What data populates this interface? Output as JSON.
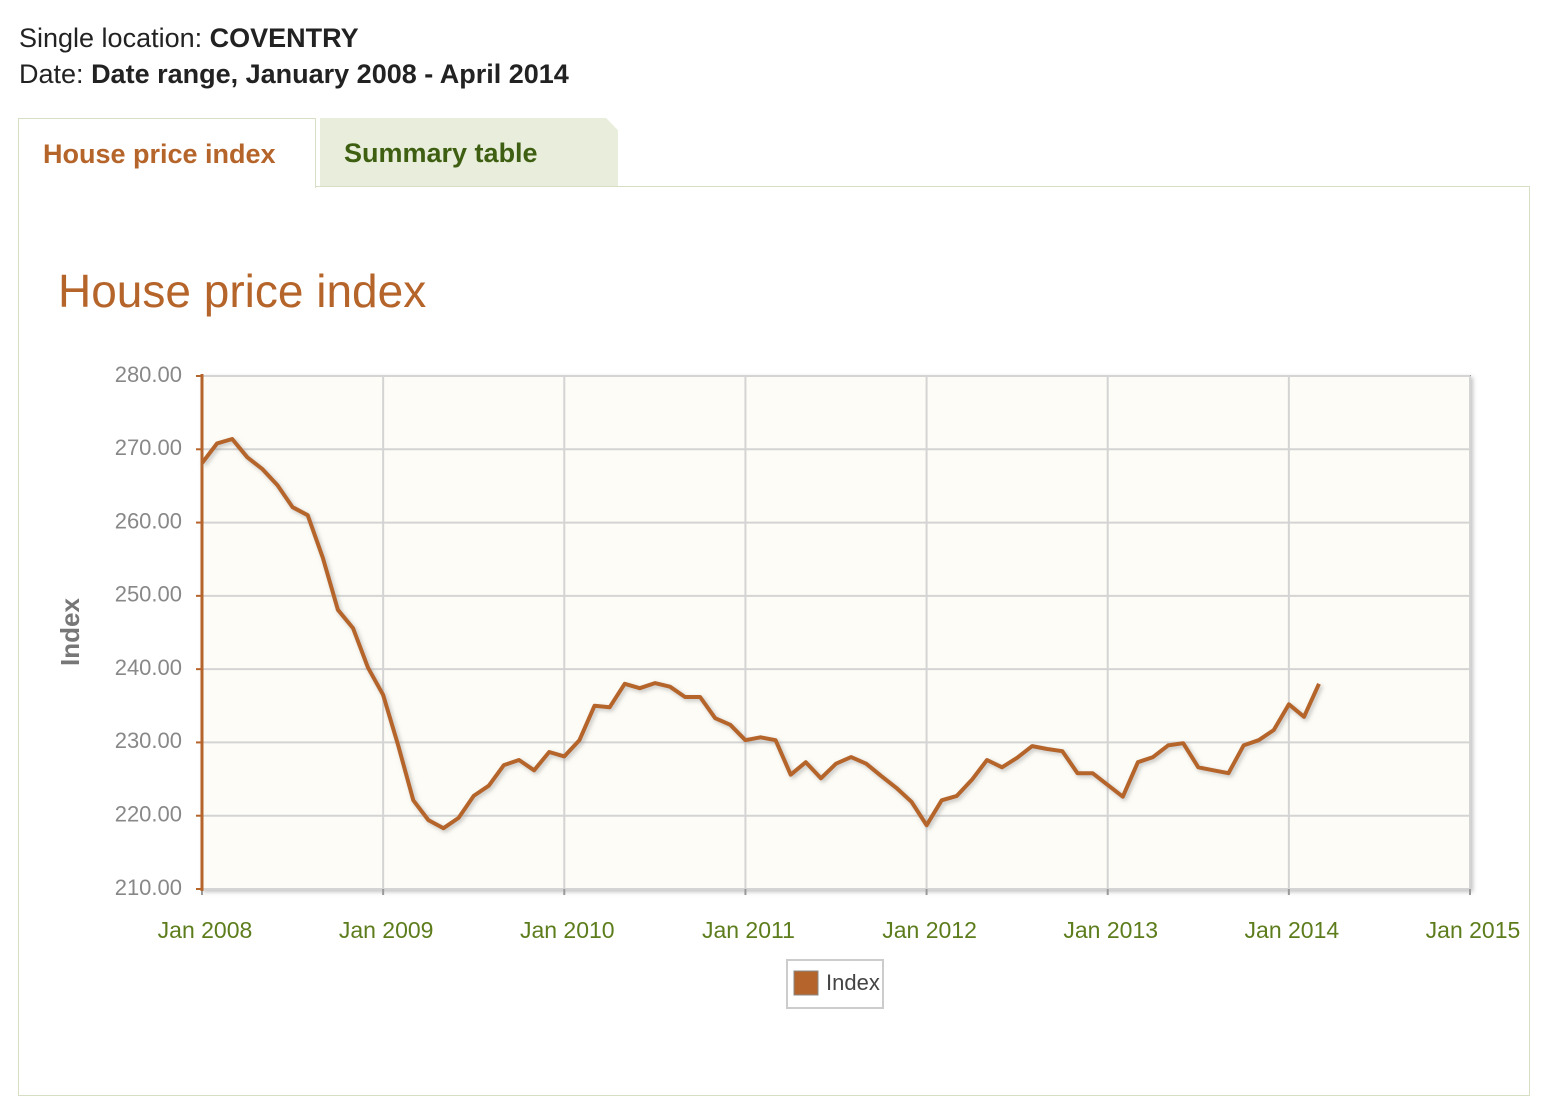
{
  "header": {
    "location_label": "Single location:",
    "location": "COVENTRY",
    "date_label": "Date:",
    "date": "Date range, January 2008 - April 2014"
  },
  "tabs": [
    "House price index",
    "Summary table"
  ],
  "chart_data": {
    "type": "line",
    "title": "House price index",
    "y_label": "Index",
    "x": [
      "2008-01",
      "2008-02",
      "2008-03",
      "2008-04",
      "2008-05",
      "2008-06",
      "2008-07",
      "2008-08",
      "2008-09",
      "2008-10",
      "2008-11",
      "2008-12",
      "2009-01",
      "2009-02",
      "2009-03",
      "2009-04",
      "2009-05",
      "2009-06",
      "2009-07",
      "2009-08",
      "2009-09",
      "2009-10",
      "2009-11",
      "2009-12",
      "2010-01",
      "2010-02",
      "2010-03",
      "2010-04",
      "2010-05",
      "2010-06",
      "2010-07",
      "2010-08",
      "2010-09",
      "2010-10",
      "2010-11",
      "2010-12",
      "2011-01",
      "2011-02",
      "2011-03",
      "2011-04",
      "2011-05",
      "2011-06",
      "2011-07",
      "2011-08",
      "2011-09",
      "2011-10",
      "2011-11",
      "2011-12",
      "2012-01",
      "2012-02",
      "2012-03",
      "2012-04",
      "2012-05",
      "2012-06",
      "2012-07",
      "2012-08",
      "2012-09",
      "2012-10",
      "2012-11",
      "2012-12",
      "2013-01",
      "2013-02",
      "2013-03",
      "2013-04",
      "2013-05",
      "2013-06",
      "2013-07",
      "2013-08",
      "2013-09",
      "2013-10",
      "2013-11",
      "2013-12",
      "2014-01",
      "2014-02",
      "2014-03"
    ],
    "series": [
      {
        "name": "Index",
        "color": "#b5652b",
        "values": [
          268.1,
          270.8,
          271.4,
          268.9,
          267.3,
          265.1,
          262.1,
          261.0,
          255.2,
          248.1,
          245.6,
          240.2,
          236.5,
          229.6,
          222.1,
          219.4,
          218.3,
          219.7,
          222.7,
          224.1,
          226.9,
          227.6,
          226.2,
          228.7,
          228.1,
          230.3,
          235.0,
          234.8,
          238.0,
          237.4,
          238.1,
          237.6,
          236.2,
          236.2,
          233.3,
          232.4,
          230.3,
          230.7,
          230.3,
          225.6,
          227.3,
          225.1,
          227.1,
          228.0,
          227.1,
          225.4,
          223.8,
          221.9,
          218.7,
          222.1,
          222.7,
          224.9,
          227.6,
          226.6,
          227.9,
          229.5,
          229.1,
          228.8,
          225.8,
          225.8,
          224.2,
          222.6,
          227.3,
          228.0,
          229.6,
          229.9,
          226.6,
          226.2,
          225.8,
          229.6,
          230.3,
          231.7,
          235.2,
          233.5,
          238.0
        ]
      }
    ],
    "xlim": [
      "2008-01",
      "2015-01"
    ],
    "xticks": [
      {
        "value": "2008-01",
        "label": "Jan 2008"
      },
      {
        "value": "2009-01",
        "label": "Jan 2009"
      },
      {
        "value": "2010-01",
        "label": "Jan 2010"
      },
      {
        "value": "2011-01",
        "label": "Jan 2011"
      },
      {
        "value": "2012-01",
        "label": "Jan 2012"
      },
      {
        "value": "2013-01",
        "label": "Jan 2013"
      },
      {
        "value": "2014-01",
        "label": "Jan 2014"
      },
      {
        "value": "2015-01",
        "label": "Jan 2015"
      }
    ],
    "ylim": [
      210,
      280
    ],
    "yticks": [
      {
        "value": 210,
        "label": "210.00"
      },
      {
        "value": 220,
        "label": "220.00"
      },
      {
        "value": 230,
        "label": "230.00"
      },
      {
        "value": 240,
        "label": "240.00"
      },
      {
        "value": 250,
        "label": "250.00"
      },
      {
        "value": 260,
        "label": "260.00"
      },
      {
        "value": 270,
        "label": "270.00"
      },
      {
        "value": 280,
        "label": "280.00"
      }
    ],
    "grid": true,
    "legend": "bottom"
  }
}
